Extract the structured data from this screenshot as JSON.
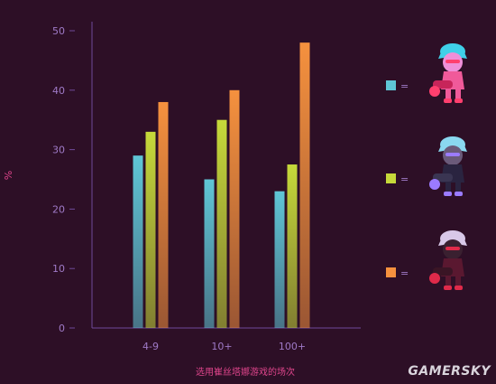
{
  "chart_data": {
    "type": "bar",
    "categories": [
      "4-9",
      "10+",
      "100+"
    ],
    "series": [
      {
        "color": "#5fc6d6",
        "values": [
          29,
          25,
          23
        ]
      },
      {
        "color": "#c6d93a",
        "values": [
          33,
          35,
          27.5
        ]
      },
      {
        "color": "#f5913e",
        "values": [
          38,
          40,
          48
        ]
      }
    ],
    "ylabel": "%",
    "xlabel": "选用崔丝塔娜游戏的场次",
    "ylim": [
      0,
      50
    ],
    "yticks": [
      0,
      10,
      20,
      30,
      40,
      50
    ],
    "legend": {
      "placement": "right",
      "entries": [
        {
          "color": "#5fc6d6",
          "text": "=",
          "icon": "tristana-champion-icon-pink"
        },
        {
          "color": "#c6d93a",
          "text": "=",
          "icon": "tristana-champion-icon-dark-blue"
        },
        {
          "color": "#f5913e",
          "text": "=",
          "icon": "tristana-champion-icon-dark-red"
        }
      ]
    }
  },
  "watermark": "GAMERSKY"
}
